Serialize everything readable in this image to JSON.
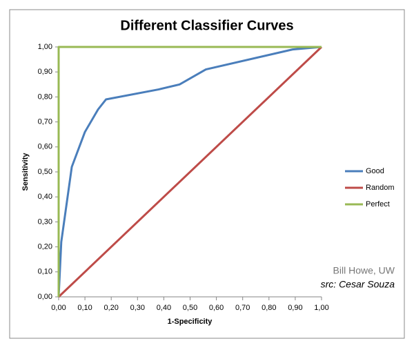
{
  "chart_data": {
    "type": "line",
    "title": "Different Classifier Curves",
    "x_label": "1-Specificity",
    "y_label": "Sensitivity",
    "xlim": [
      0,
      1
    ],
    "ylim": [
      0,
      1
    ],
    "xticks": [
      {
        "value": 0,
        "label": "0,00"
      },
      {
        "value": 0.1,
        "label": "0,10"
      },
      {
        "value": 0.2,
        "label": "0,20"
      },
      {
        "value": 0.3,
        "label": "0,30"
      },
      {
        "value": 0.4,
        "label": "0,40"
      },
      {
        "value": 0.5,
        "label": "0,50"
      },
      {
        "value": 0.6,
        "label": "0,60"
      },
      {
        "value": 0.7,
        "label": "0,70"
      },
      {
        "value": 0.8,
        "label": "0,80"
      },
      {
        "value": 0.9,
        "label": "0,90"
      },
      {
        "value": 1,
        "label": "1,00"
      }
    ],
    "yticks": [
      {
        "value": 0,
        "label": "0,00"
      },
      {
        "value": 0.1,
        "label": "0,10"
      },
      {
        "value": 0.2,
        "label": "0,20"
      },
      {
        "value": 0.3,
        "label": "0,30"
      },
      {
        "value": 0.4,
        "label": "0,40"
      },
      {
        "value": 0.5,
        "label": "0,50"
      },
      {
        "value": 0.6,
        "label": "0,60"
      },
      {
        "value": 0.7,
        "label": "0,70"
      },
      {
        "value": 0.8,
        "label": "0,80"
      },
      {
        "value": 0.9,
        "label": "0,90"
      },
      {
        "value": 1,
        "label": "1,00"
      }
    ],
    "legend": "right",
    "series": [
      {
        "name": "Good",
        "color": "#4a7ebb",
        "x": [
          0,
          0.01,
          0.05,
          0.1,
          0.15,
          0.18,
          0.38,
          0.46,
          0.56,
          0.89,
          1
        ],
        "values": [
          0,
          0.22,
          0.52,
          0.66,
          0.75,
          0.79,
          0.83,
          0.85,
          0.91,
          0.99,
          1
        ]
      },
      {
        "name": "Random",
        "color": "#be4b48",
        "x": [
          0,
          1
        ],
        "values": [
          0,
          1
        ]
      },
      {
        "name": "Perfect",
        "color": "#98b954",
        "x": [
          0,
          0,
          1
        ],
        "values": [
          0,
          1,
          1
        ]
      }
    ],
    "annotations": [
      "Bill Howe, UW",
      "src: Cesar Souza"
    ]
  }
}
